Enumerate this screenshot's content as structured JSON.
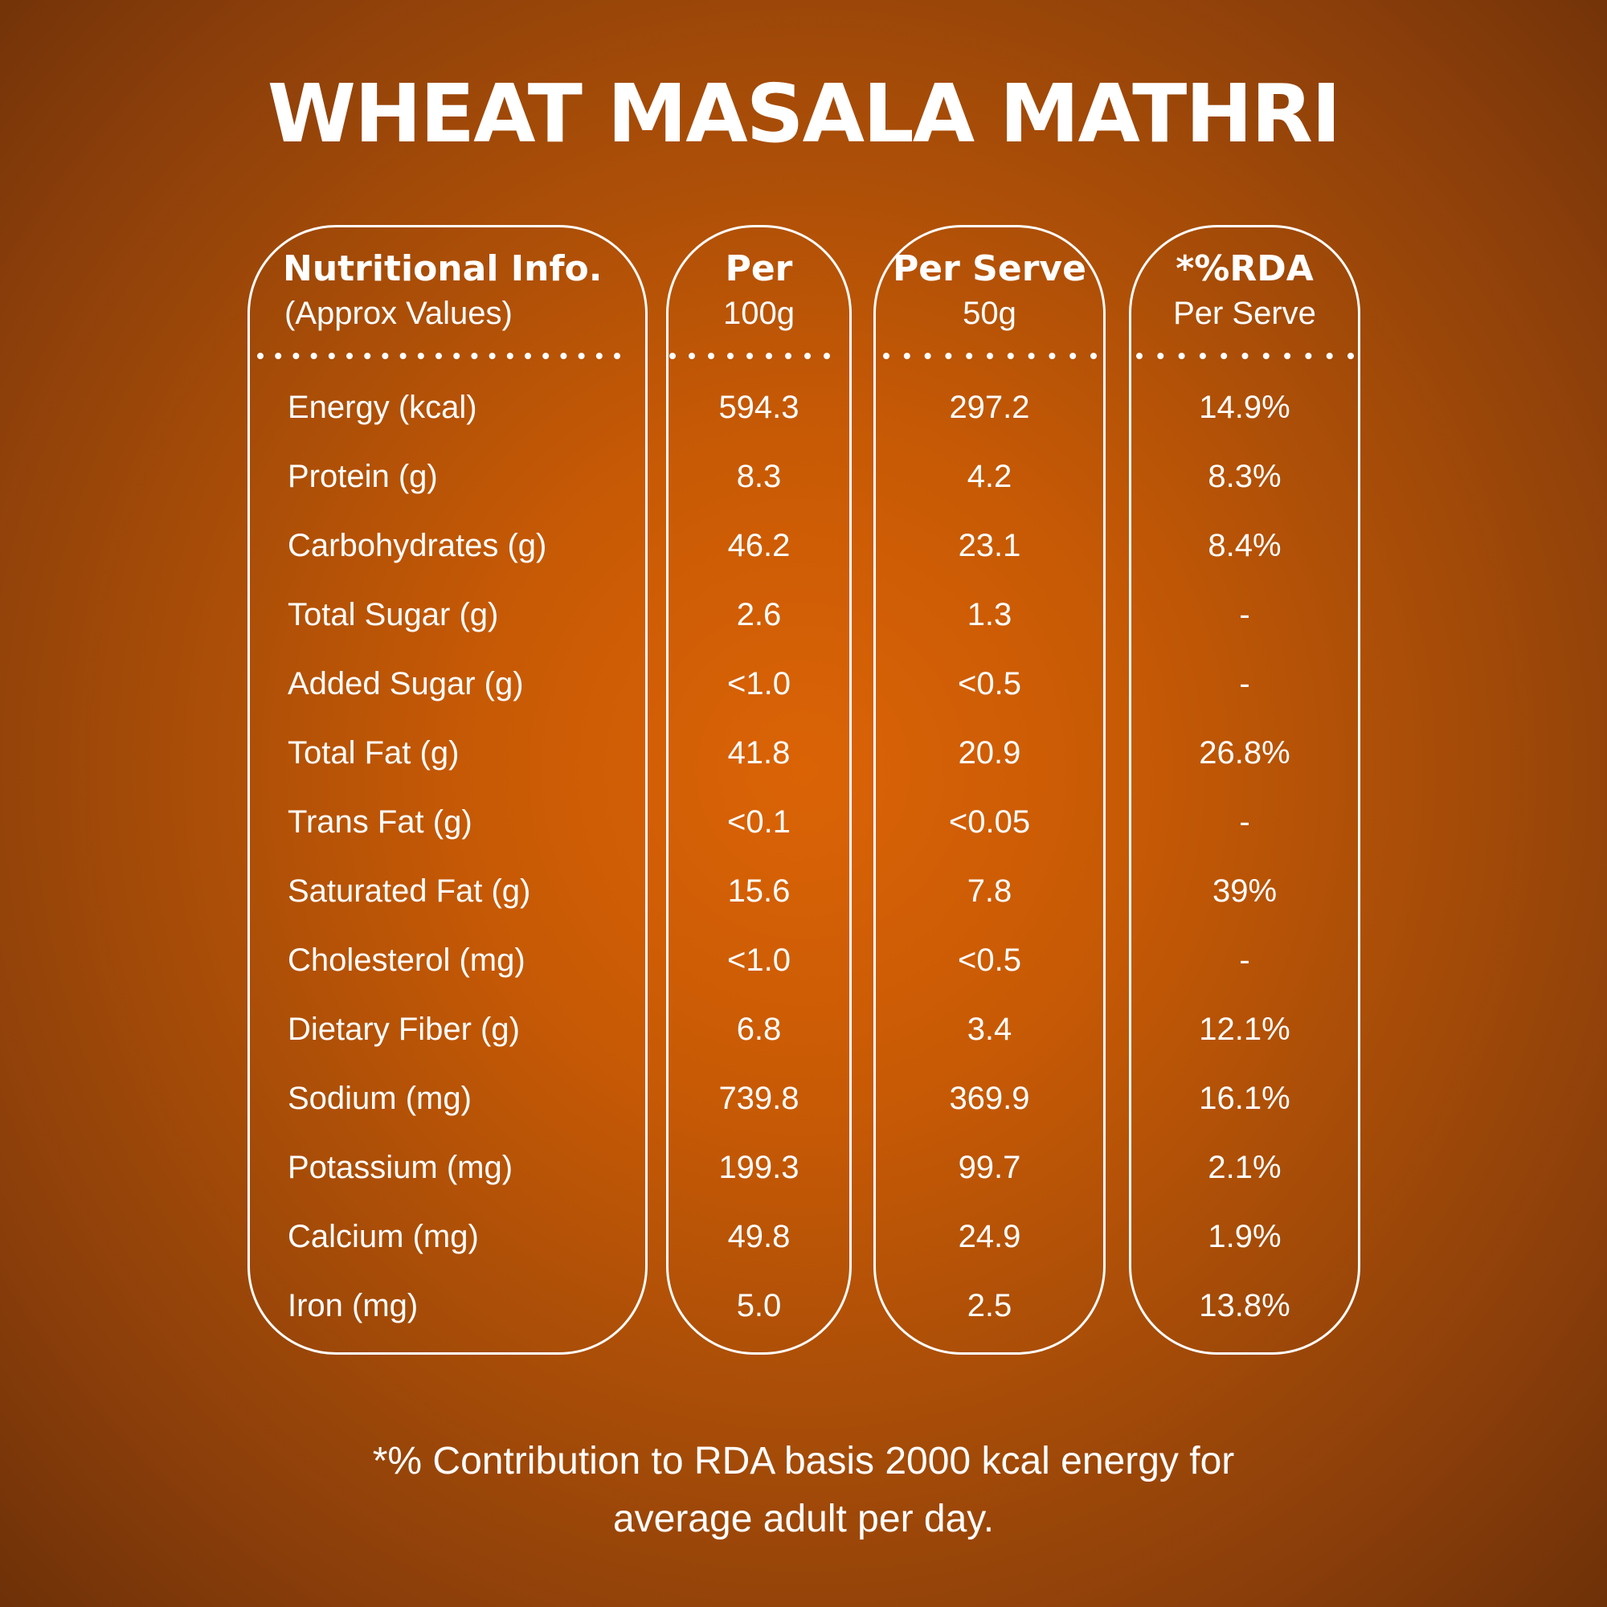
{
  "title": "WHEAT MASALA MATHRI",
  "headers": {
    "nutrient": {
      "main": "Nutritional Info.",
      "sub": "(Approx Values)"
    },
    "per100": {
      "main": "Per",
      "sub": "100g"
    },
    "serve": {
      "main": "Per Serve",
      "sub": "50g"
    },
    "rda": {
      "main": "*%RDA",
      "sub": "Per Serve"
    }
  },
  "rows": [
    {
      "nutrient": "Energy (kcal)",
      "per100": "594.3",
      "serve": "297.2",
      "rda": "14.9%"
    },
    {
      "nutrient": "Protein (g)",
      "per100": "8.3",
      "serve": "4.2",
      "rda": "8.3%"
    },
    {
      "nutrient": "Carbohydrates (g)",
      "per100": "46.2",
      "serve": "23.1",
      "rda": "8.4%"
    },
    {
      "nutrient": "Total Sugar (g)",
      "per100": "2.6",
      "serve": "1.3",
      "rda": "-"
    },
    {
      "nutrient": "Added Sugar (g)",
      "per100": "<1.0",
      "serve": "<0.5",
      "rda": "-"
    },
    {
      "nutrient": "Total Fat (g)",
      "per100": "41.8",
      "serve": "20.9",
      "rda": "26.8%"
    },
    {
      "nutrient": "Trans Fat (g)",
      "per100": "<0.1",
      "serve": "<0.05",
      "rda": "-"
    },
    {
      "nutrient": "Saturated Fat (g)",
      "per100": "15.6",
      "serve": "7.8",
      "rda": "39%"
    },
    {
      "nutrient": "Cholesterol (mg)",
      "per100": "<1.0",
      "serve": "<0.5",
      "rda": "-"
    },
    {
      "nutrient": "Dietary Fiber (g)",
      "per100": "6.8",
      "serve": "3.4",
      "rda": "12.1%"
    },
    {
      "nutrient": "Sodium (mg)",
      "per100": "739.8",
      "serve": "369.9",
      "rda": "16.1%"
    },
    {
      "nutrient": "Potassium (mg)",
      "per100": "199.3",
      "serve": "99.7",
      "rda": "2.1%"
    },
    {
      "nutrient": "Calcium (mg)",
      "per100": "49.8",
      "serve": "24.9",
      "rda": "1.9%"
    },
    {
      "nutrient": "Iron (mg)",
      "per100": "5.0",
      "serve": "2.5",
      "rda": "13.8%"
    }
  ],
  "footnote": {
    "line1": "*% Contribution to RDA basis 2000 kcal energy for",
    "line2": "average adult per day."
  },
  "colors": {
    "background": "#c85a05",
    "text": "#ffffff"
  }
}
